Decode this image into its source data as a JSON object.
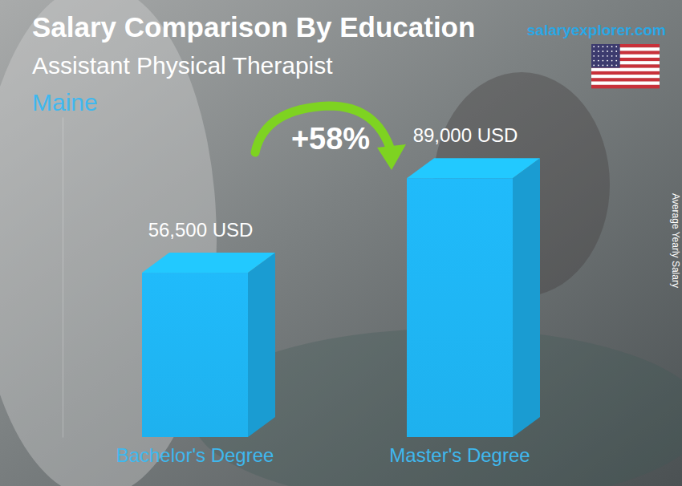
{
  "chart_data": {
    "type": "bar",
    "title": "Salary Comparison By Education",
    "subtitle": "Assistant Physical Therapist",
    "annotations": [
      "Maine",
      "salaryexplorer.com",
      "+58%"
    ],
    "y_label": "Average Yearly Salary",
    "categories": [
      "Bachelor's Degree",
      "Master's Degree"
    ],
    "values": [
      56500,
      89000
    ],
    "value_labels": [
      "56,500 USD",
      "89,000 USD"
    ],
    "data_labels": true,
    "color": "#1eb1ee",
    "ylim": [
      0,
      110000
    ],
    "tick_labels": "x",
    "grid": false
  }
}
